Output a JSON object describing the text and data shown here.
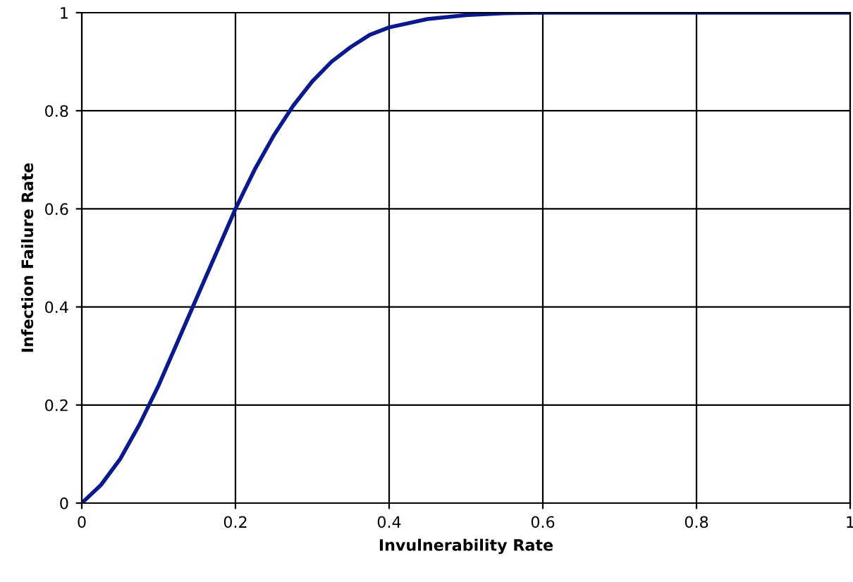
{
  "chart_data": {
    "type": "line",
    "xlabel": "Invulnerability Rate",
    "ylabel": "Infection Failure Rate",
    "x": [
      0,
      0.025,
      0.05,
      0.075,
      0.1,
      0.125,
      0.15,
      0.175,
      0.2,
      0.225,
      0.25,
      0.275,
      0.3,
      0.325,
      0.35,
      0.375,
      0.4,
      0.45,
      0.5,
      0.55,
      0.6,
      0.7,
      0.8,
      0.9,
      1
    ],
    "series": [
      {
        "color": "#0a1a8c",
        "values": [
          0,
          0.037,
          0.09,
          0.16,
          0.24,
          0.33,
          0.42,
          0.51,
          0.6,
          0.68,
          0.75,
          0.81,
          0.86,
          0.9,
          0.93,
          0.955,
          0.97,
          0.987,
          0.995,
          0.999,
          1,
          1,
          1,
          1,
          1
        ]
      }
    ],
    "xlim": [
      0,
      1
    ],
    "ylim": [
      0,
      1
    ],
    "xticks": [
      0,
      0.2,
      0.4,
      0.6,
      0.8,
      1
    ],
    "yticks": [
      0,
      0.2,
      0.4,
      0.6,
      0.8,
      1
    ],
    "grid": true,
    "marker": "none",
    "line_style": "solid"
  }
}
